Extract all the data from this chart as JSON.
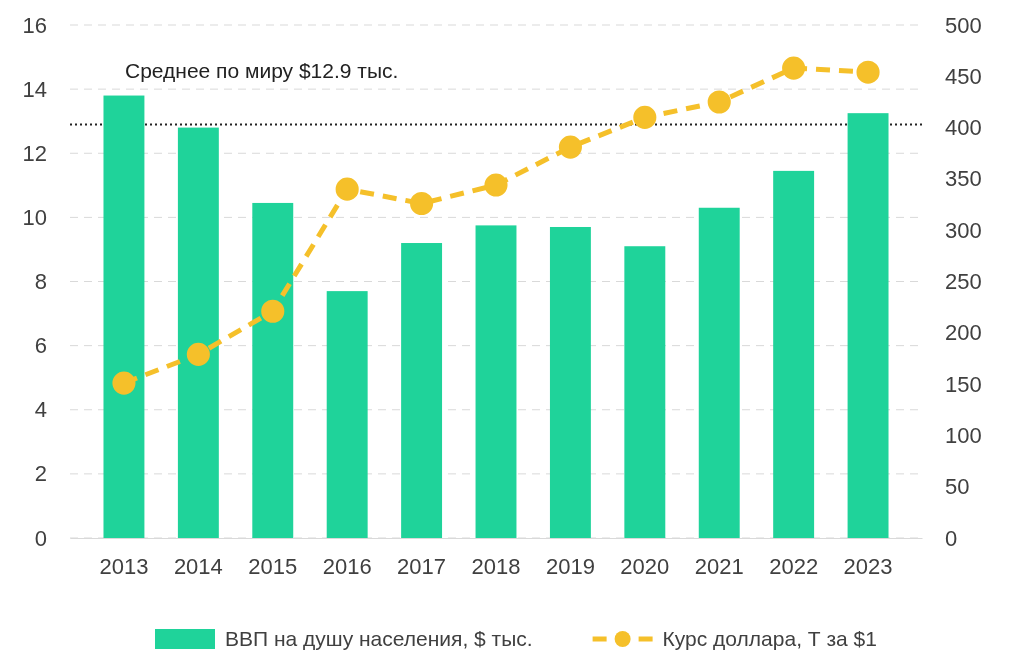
{
  "chart_data": {
    "type": "bar",
    "categories": [
      "2013",
      "2014",
      "2015",
      "2016",
      "2017",
      "2018",
      "2019",
      "2020",
      "2021",
      "2022",
      "2023"
    ],
    "series": [
      {
        "name": "ВВП на душу населения, $ тыс.",
        "type": "bar",
        "color": "#1fd39a",
        "values": [
          13.8,
          12.8,
          10.45,
          7.7,
          9.2,
          9.75,
          9.7,
          9.1,
          10.3,
          11.45,
          13.25
        ]
      },
      {
        "name": "Курс доллара, Т за $1",
        "type": "line",
        "axis": "y2",
        "color": "#f5c02a",
        "marker": "circle",
        "line_style": "dashed",
        "values": [
          151,
          179,
          221,
          340,
          326,
          344,
          381,
          410,
          425,
          458,
          454
        ]
      }
    ],
    "ylim": [
      0,
      16
    ],
    "yticks": [
      0,
      2,
      4,
      6,
      8,
      10,
      12,
      14,
      16
    ],
    "y2lim": [
      0,
      500
    ],
    "y2ticks": [
      0,
      50,
      100,
      150,
      200,
      250,
      300,
      350,
      400,
      450,
      500
    ],
    "ref_lines": [
      {
        "axis": "y",
        "value": 12.9,
        "label": "Среднее по миру $12.9 тыс.",
        "color": "#222222",
        "line_style": "dotted"
      }
    ],
    "grid": "y",
    "legend": "bottom"
  }
}
